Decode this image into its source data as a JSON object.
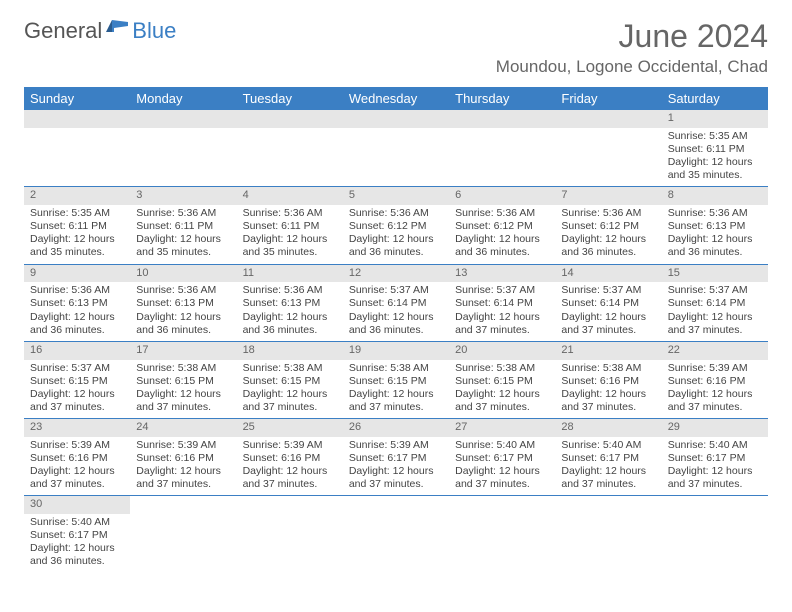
{
  "logo": {
    "text1": "General",
    "text2": "Blue"
  },
  "title": {
    "month_year": "June 2024",
    "location": "Moundou, Logone Occidental, Chad"
  },
  "day_headers": [
    "Sunday",
    "Monday",
    "Tuesday",
    "Wednesday",
    "Thursday",
    "Friday",
    "Saturday"
  ],
  "colors": {
    "header_bg": "#3b7fc4",
    "header_fg": "#ffffff",
    "daynum_bg": "#e6e6e6",
    "text": "#444444",
    "border": "#3b7fc4"
  },
  "fonts": {
    "title_size": 32,
    "location_size": 17,
    "header_size": 13,
    "cell_size": 10.5
  },
  "weeks": [
    [
      null,
      null,
      null,
      null,
      null,
      null,
      {
        "n": "1",
        "sr": "Sunrise: 5:35 AM",
        "ss": "Sunset: 6:11 PM",
        "d1": "Daylight: 12 hours",
        "d2": "and 35 minutes."
      }
    ],
    [
      {
        "n": "2",
        "sr": "Sunrise: 5:35 AM",
        "ss": "Sunset: 6:11 PM",
        "d1": "Daylight: 12 hours",
        "d2": "and 35 minutes."
      },
      {
        "n": "3",
        "sr": "Sunrise: 5:36 AM",
        "ss": "Sunset: 6:11 PM",
        "d1": "Daylight: 12 hours",
        "d2": "and 35 minutes."
      },
      {
        "n": "4",
        "sr": "Sunrise: 5:36 AM",
        "ss": "Sunset: 6:11 PM",
        "d1": "Daylight: 12 hours",
        "d2": "and 35 minutes."
      },
      {
        "n": "5",
        "sr": "Sunrise: 5:36 AM",
        "ss": "Sunset: 6:12 PM",
        "d1": "Daylight: 12 hours",
        "d2": "and 36 minutes."
      },
      {
        "n": "6",
        "sr": "Sunrise: 5:36 AM",
        "ss": "Sunset: 6:12 PM",
        "d1": "Daylight: 12 hours",
        "d2": "and 36 minutes."
      },
      {
        "n": "7",
        "sr": "Sunrise: 5:36 AM",
        "ss": "Sunset: 6:12 PM",
        "d1": "Daylight: 12 hours",
        "d2": "and 36 minutes."
      },
      {
        "n": "8",
        "sr": "Sunrise: 5:36 AM",
        "ss": "Sunset: 6:13 PM",
        "d1": "Daylight: 12 hours",
        "d2": "and 36 minutes."
      }
    ],
    [
      {
        "n": "9",
        "sr": "Sunrise: 5:36 AM",
        "ss": "Sunset: 6:13 PM",
        "d1": "Daylight: 12 hours",
        "d2": "and 36 minutes."
      },
      {
        "n": "10",
        "sr": "Sunrise: 5:36 AM",
        "ss": "Sunset: 6:13 PM",
        "d1": "Daylight: 12 hours",
        "d2": "and 36 minutes."
      },
      {
        "n": "11",
        "sr": "Sunrise: 5:36 AM",
        "ss": "Sunset: 6:13 PM",
        "d1": "Daylight: 12 hours",
        "d2": "and 36 minutes."
      },
      {
        "n": "12",
        "sr": "Sunrise: 5:37 AM",
        "ss": "Sunset: 6:14 PM",
        "d1": "Daylight: 12 hours",
        "d2": "and 36 minutes."
      },
      {
        "n": "13",
        "sr": "Sunrise: 5:37 AM",
        "ss": "Sunset: 6:14 PM",
        "d1": "Daylight: 12 hours",
        "d2": "and 37 minutes."
      },
      {
        "n": "14",
        "sr": "Sunrise: 5:37 AM",
        "ss": "Sunset: 6:14 PM",
        "d1": "Daylight: 12 hours",
        "d2": "and 37 minutes."
      },
      {
        "n": "15",
        "sr": "Sunrise: 5:37 AM",
        "ss": "Sunset: 6:14 PM",
        "d1": "Daylight: 12 hours",
        "d2": "and 37 minutes."
      }
    ],
    [
      {
        "n": "16",
        "sr": "Sunrise: 5:37 AM",
        "ss": "Sunset: 6:15 PM",
        "d1": "Daylight: 12 hours",
        "d2": "and 37 minutes."
      },
      {
        "n": "17",
        "sr": "Sunrise: 5:38 AM",
        "ss": "Sunset: 6:15 PM",
        "d1": "Daylight: 12 hours",
        "d2": "and 37 minutes."
      },
      {
        "n": "18",
        "sr": "Sunrise: 5:38 AM",
        "ss": "Sunset: 6:15 PM",
        "d1": "Daylight: 12 hours",
        "d2": "and 37 minutes."
      },
      {
        "n": "19",
        "sr": "Sunrise: 5:38 AM",
        "ss": "Sunset: 6:15 PM",
        "d1": "Daylight: 12 hours",
        "d2": "and 37 minutes."
      },
      {
        "n": "20",
        "sr": "Sunrise: 5:38 AM",
        "ss": "Sunset: 6:15 PM",
        "d1": "Daylight: 12 hours",
        "d2": "and 37 minutes."
      },
      {
        "n": "21",
        "sr": "Sunrise: 5:38 AM",
        "ss": "Sunset: 6:16 PM",
        "d1": "Daylight: 12 hours",
        "d2": "and 37 minutes."
      },
      {
        "n": "22",
        "sr": "Sunrise: 5:39 AM",
        "ss": "Sunset: 6:16 PM",
        "d1": "Daylight: 12 hours",
        "d2": "and 37 minutes."
      }
    ],
    [
      {
        "n": "23",
        "sr": "Sunrise: 5:39 AM",
        "ss": "Sunset: 6:16 PM",
        "d1": "Daylight: 12 hours",
        "d2": "and 37 minutes."
      },
      {
        "n": "24",
        "sr": "Sunrise: 5:39 AM",
        "ss": "Sunset: 6:16 PM",
        "d1": "Daylight: 12 hours",
        "d2": "and 37 minutes."
      },
      {
        "n": "25",
        "sr": "Sunrise: 5:39 AM",
        "ss": "Sunset: 6:16 PM",
        "d1": "Daylight: 12 hours",
        "d2": "and 37 minutes."
      },
      {
        "n": "26",
        "sr": "Sunrise: 5:39 AM",
        "ss": "Sunset: 6:17 PM",
        "d1": "Daylight: 12 hours",
        "d2": "and 37 minutes."
      },
      {
        "n": "27",
        "sr": "Sunrise: 5:40 AM",
        "ss": "Sunset: 6:17 PM",
        "d1": "Daylight: 12 hours",
        "d2": "and 37 minutes."
      },
      {
        "n": "28",
        "sr": "Sunrise: 5:40 AM",
        "ss": "Sunset: 6:17 PM",
        "d1": "Daylight: 12 hours",
        "d2": "and 37 minutes."
      },
      {
        "n": "29",
        "sr": "Sunrise: 5:40 AM",
        "ss": "Sunset: 6:17 PM",
        "d1": "Daylight: 12 hours",
        "d2": "and 37 minutes."
      }
    ],
    [
      {
        "n": "30",
        "sr": "Sunrise: 5:40 AM",
        "ss": "Sunset: 6:17 PM",
        "d1": "Daylight: 12 hours",
        "d2": "and 36 minutes."
      },
      null,
      null,
      null,
      null,
      null,
      null
    ]
  ]
}
